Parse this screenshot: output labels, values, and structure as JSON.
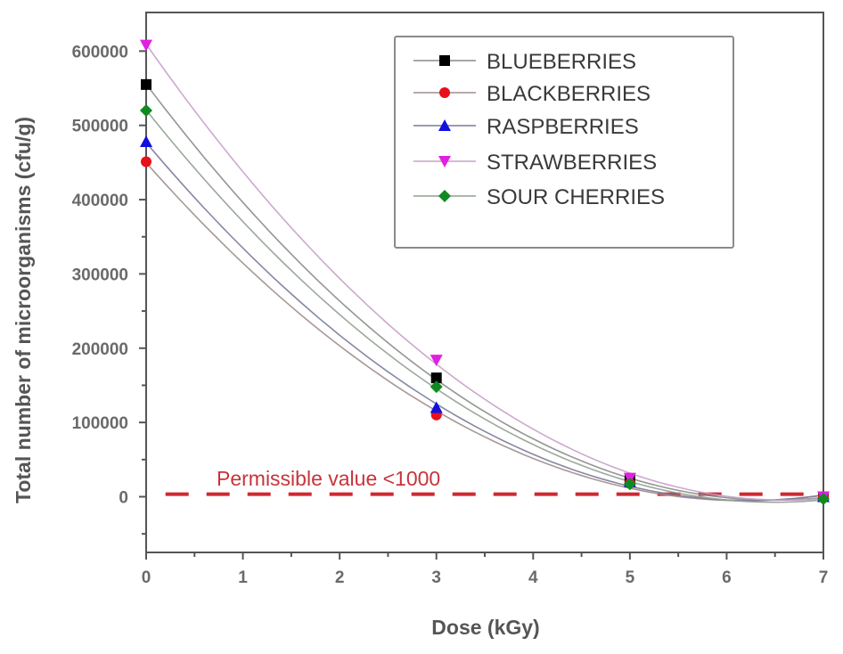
{
  "chart_data": {
    "type": "scatter",
    "title": "",
    "xlabel": "Dose (kGy)",
    "ylabel": "Total number of microorganisms (cfu/g)",
    "xlim": [
      0,
      7
    ],
    "ylim": [
      -75000,
      652000
    ],
    "xticks": [
      0,
      1,
      2,
      3,
      4,
      5,
      6,
      7
    ],
    "yticks": [
      0,
      100000,
      200000,
      300000,
      400000,
      500000,
      600000
    ],
    "ytick_labels": [
      "0",
      "100000",
      "200000",
      "300000",
      "400000",
      "500000",
      "600000"
    ],
    "xtick_labels": [
      "0",
      "1",
      "2",
      "3",
      "4",
      "5",
      "6",
      "7"
    ],
    "grid": false,
    "legend_position": "upper right",
    "fit": "quadratic",
    "x": [
      0,
      3,
      5,
      7
    ],
    "series": [
      {
        "name": "BLUEBERRIES",
        "marker": "square",
        "color": "#000000",
        "line_color": "#8a8a8a",
        "values": [
          555000,
          160000,
          22000,
          0
        ]
      },
      {
        "name": "BLACKBERRIES",
        "marker": "circle",
        "color": "#e8101a",
        "line_color": "#a08c8c",
        "values": [
          451000,
          110000,
          18000,
          0
        ]
      },
      {
        "name": "RASPBERRIES",
        "marker": "triangle-up",
        "color": "#1010e0",
        "line_color": "#7a7a9a",
        "values": [
          478000,
          120000,
          20000,
          0
        ]
      },
      {
        "name": "STRAWBERRIES",
        "marker": "triangle-down",
        "color": "#e020e0",
        "line_color": "#c8a0c8",
        "values": [
          608000,
          184000,
          25000,
          0
        ]
      },
      {
        "name": "SOUR CHERRIES",
        "marker": "diamond",
        "color": "#108a20",
        "line_color": "#90a090",
        "values": [
          520000,
          148000,
          17000,
          -3000
        ]
      }
    ],
    "annotations": [
      {
        "text": "Permissible value <1000",
        "type": "hline",
        "y": 1000,
        "color": "#c8333c",
        "style": "dashed",
        "x_start": 0.2,
        "x_end": 7
      }
    ]
  },
  "axes": {
    "x_title": "Dose (kGy)",
    "y_title": "Total number of microorganisms (cfu/g)"
  },
  "annotation": {
    "label": "Permissible value <1000"
  },
  "legend": {
    "items": [
      "BLUEBERRIES",
      "BLACKBERRIES",
      "RASPBERRIES",
      "STRAWBERRIES",
      "SOUR CHERRIES"
    ]
  }
}
